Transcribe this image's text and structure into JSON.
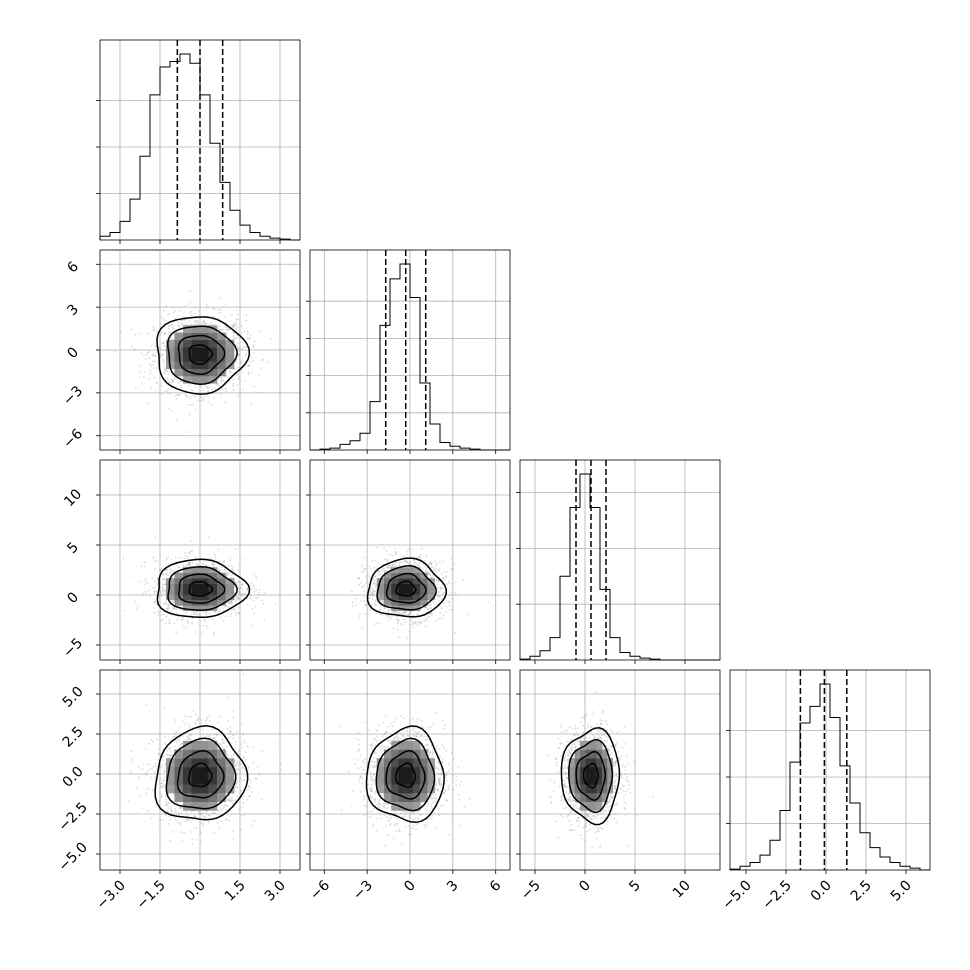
{
  "chart_data": {
    "type": "corner",
    "colors": {
      "line": "#000000",
      "grid": "#b0b0b0",
      "points": "#9a9a9a"
    },
    "grid": true,
    "variables": [
      {
        "range": [
          -3.75,
          3.75
        ],
        "mean": 0.0,
        "sd": 0.85,
        "ticks": [
          -3.0,
          -1.5,
          0.0,
          1.5,
          3.0
        ],
        "tick_labels": [
          "−3.0",
          "−1.5",
          "0.0",
          "1.5",
          "3.0"
        ],
        "quantiles": [
          -0.85,
          0.0,
          0.85
        ]
      },
      {
        "range": [
          -7.0,
          7.0
        ],
        "mean": -0.3,
        "sd": 1.35,
        "ticks": [
          -6,
          -3,
          0,
          3,
          6
        ],
        "tick_labels": [
          "−6",
          "−3",
          "0",
          "3",
          "6"
        ],
        "quantiles": [
          -1.7,
          -0.3,
          1.1
        ]
      },
      {
        "range": [
          -6.5,
          13.5
        ],
        "mean": 0.6,
        "sd": 1.45,
        "ticks": [
          -5,
          0,
          5,
          10
        ],
        "tick_labels": [
          "−5",
          "0",
          "5",
          "10"
        ],
        "quantiles": [
          -0.9,
          0.6,
          2.1
        ]
      },
      {
        "range": [
          -6.0,
          6.5
        ],
        "mean": -0.1,
        "sd": 1.45,
        "ticks": [
          -5.0,
          -2.5,
          0.0,
          2.5,
          5.0
        ],
        "tick_labels": [
          "−5.0",
          "−2.5",
          "0.0",
          "2.5",
          "5.0"
        ],
        "quantiles": [
          -1.6,
          -0.1,
          1.3
        ]
      }
    ],
    "histograms": [
      {
        "variable": 0,
        "bins": 20,
        "counts": [
          0.02,
          0.04,
          0.1,
          0.22,
          0.45,
          0.78,
          0.93,
          0.96,
          1.0,
          0.95,
          0.78,
          0.52,
          0.31,
          0.16,
          0.08,
          0.04,
          0.02,
          0.01,
          0.005,
          0.0
        ],
        "yticks": [
          0.25,
          0.5,
          0.75
        ]
      },
      {
        "variable": 1,
        "bins": 20,
        "counts": [
          0.0,
          0.005,
          0.01,
          0.03,
          0.05,
          0.09,
          0.26,
          0.67,
          0.92,
          1.0,
          0.82,
          0.36,
          0.14,
          0.04,
          0.02,
          0.01,
          0.005,
          0.0,
          0.0,
          0.0
        ],
        "yticks": [
          0.2,
          0.4,
          0.6,
          0.8
        ]
      },
      {
        "variable": 2,
        "bins": 20,
        "counts": [
          0.005,
          0.02,
          0.05,
          0.12,
          0.45,
          0.82,
          1.0,
          0.82,
          0.38,
          0.12,
          0.04,
          0.02,
          0.01,
          0.005,
          0.0,
          0.0,
          0.0,
          0.0,
          0.0,
          0.0
        ],
        "yticks": [
          0.3,
          0.6,
          0.9
        ]
      },
      {
        "variable": 3,
        "bins": 20,
        "counts": [
          0.005,
          0.02,
          0.04,
          0.08,
          0.16,
          0.32,
          0.58,
          0.79,
          0.88,
          1.0,
          0.82,
          0.56,
          0.36,
          0.2,
          0.12,
          0.07,
          0.04,
          0.02,
          0.01,
          0.0
        ],
        "yticks": [
          0.25,
          0.5,
          0.75
        ]
      }
    ],
    "pairs": [
      {
        "x": 0,
        "y": 1,
        "rho": 0.0
      },
      {
        "x": 0,
        "y": 2,
        "rho": 0.0
      },
      {
        "x": 1,
        "y": 2,
        "rho": 0.0
      },
      {
        "x": 0,
        "y": 3,
        "rho": 0.05
      },
      {
        "x": 1,
        "y": 3,
        "rho": 0.0
      },
      {
        "x": 2,
        "y": 3,
        "rho": 0.0
      }
    ],
    "contour_levels_sigma": [
      0.5,
      1.0,
      1.5,
      2.0
    ],
    "samples_per_panel": 1500,
    "xlabel": "",
    "ylabel": ""
  }
}
